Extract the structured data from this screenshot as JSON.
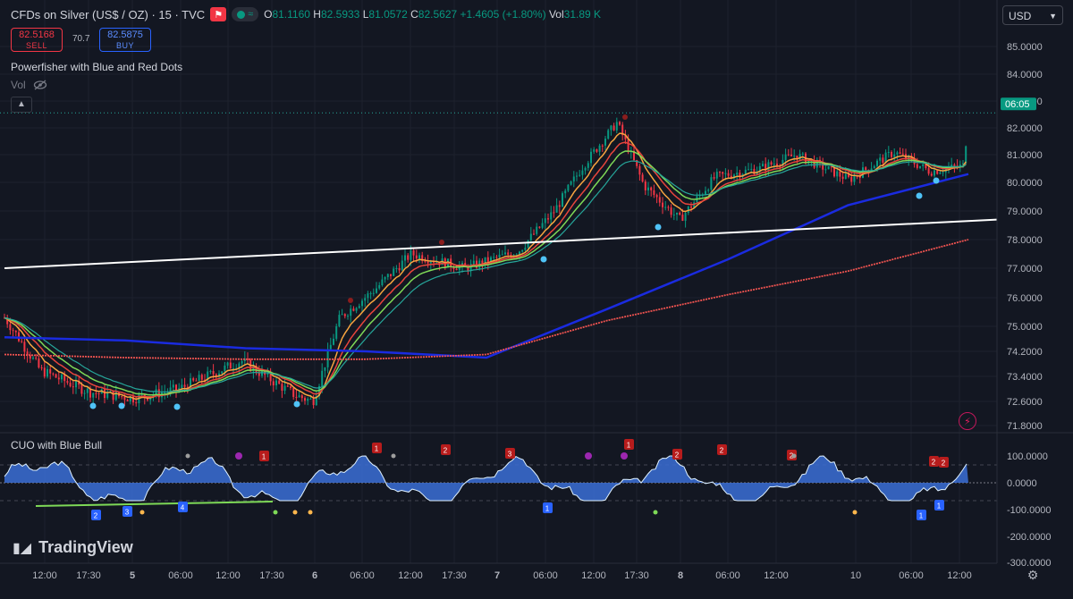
{
  "header": {
    "symbol": "CFDs on Silver (US$ / OZ) · 15 · TVC",
    "ohlc": {
      "o_label": "O",
      "o": "81.1160",
      "h_label": "H",
      "h": "82.5933",
      "l_label": "L",
      "l": "81.0572",
      "c_label": "C",
      "c": "82.5627",
      "change": "+1.4605 (+1.80%)",
      "vol_label": "Vol",
      "vol": "31.89 K"
    },
    "sell_price": "82.5168",
    "sell_label": "SELL",
    "spread": "70.7",
    "buy_price": "82.5875",
    "buy_label": "BUY",
    "currency": "USD"
  },
  "indicators": {
    "main_name": "Powerfisher with Blue and Red Dots",
    "vol_label": "Vol",
    "sub_name": "CUO with Blue Bull"
  },
  "logo_text": "TradingView",
  "icons": {
    "eye": "eye-hidden-icon",
    "gear": "settings-icon",
    "flash": "flash-icon",
    "collapse": "chevron-up-icon",
    "flag": "flag-icon"
  },
  "colors": {
    "up": "#089981",
    "down": "#f23645",
    "bg": "#131722",
    "trendline": "#ffffff",
    "ema_orange": "#f7a440",
    "ema_red": "#e8453c",
    "ema_green": "#7ed957",
    "ema_teal": "#26a69a",
    "ma_blue": "#1a2be0",
    "ma_red": "#ef5350",
    "osc_fill": "#3b6fd6"
  },
  "chart_data": [
    {
      "type": "candlestick",
      "title": "CFDs on Silver (US$ / OZ) · 15 · TVC",
      "yticks": [
        "85.0000",
        "84.0000",
        "83.0000",
        "82.0000",
        "81.0000",
        "80.0000",
        "79.0000",
        "78.0000",
        "77.0000",
        "76.0000",
        "75.0000",
        "74.2000",
        "73.4000",
        "72.6000",
        "71.8000"
      ],
      "xticks": [
        "12:00",
        "17:30",
        "5",
        "06:00",
        "12:00",
        "17:30",
        "6",
        "06:00",
        "12:00",
        "17:30",
        "7",
        "06:00",
        "12:00",
        "17:30",
        "8",
        "06:00",
        "12:00",
        "10",
        "06:00",
        "12:00"
      ],
      "last_price_label": "06:05",
      "key_prices": {
        "start": 75.3,
        "low": 72.4,
        "day6_low": 72.6,
        "day7_peak": 82.2,
        "day8_low": 78.7,
        "last": 82.56
      },
      "series": [
        {
          "key": "ma_blue",
          "values": [
            74.65,
            74.55,
            74.3,
            74.2,
            74.0,
            75.6,
            77.3,
            79.2,
            80.3
          ]
        },
        {
          "key": "ma_red",
          "values": [
            74.1,
            74.0,
            73.95,
            73.95,
            74.1,
            75.2,
            76.1,
            76.9,
            78.0
          ]
        },
        {
          "key": "trendline",
          "values": [
            77.0,
            78.7
          ]
        }
      ]
    },
    {
      "type": "area",
      "title": "CUO with Blue Bull",
      "yticks": [
        "100.0000",
        "0.0000",
        "-100.0000",
        "-200.0000",
        "-300.0000"
      ],
      "ylim": [
        -300,
        140
      ],
      "signal_labels": [
        "1",
        "2",
        "3",
        "4",
        "2",
        "3",
        "1",
        "1",
        "2",
        "2",
        "1",
        "1",
        "2",
        "1",
        "2",
        "2"
      ]
    }
  ]
}
